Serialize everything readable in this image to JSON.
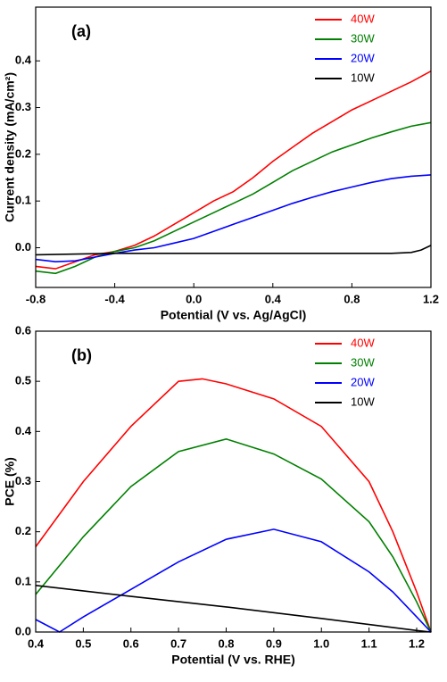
{
  "chart_data": [
    {
      "type": "line",
      "annotation": "(a)",
      "x_label": "Potential (V vs. Ag/AgCl)",
      "y_label": "Current density (mA/cm²)",
      "xlim": [
        -0.8,
        1.2
      ],
      "xticks": [
        -0.8,
        -0.4,
        {
          "value": 0,
          "label": "0.0"
        },
        0.4,
        0.8,
        1.2
      ],
      "ylim": [
        -0.085,
        0.515
      ],
      "yticks": [
        {
          "value": 0,
          "label": "0.0"
        },
        0.1,
        0.2,
        0.3,
        0.4
      ],
      "legend": "upper right",
      "series": [
        {
          "name": "40W",
          "color": "#ff0000",
          "x": [
            -0.8,
            -0.7,
            -0.6,
            -0.5,
            -0.4,
            -0.3,
            -0.2,
            -0.1,
            0,
            0.1,
            0.2,
            0.3,
            0.4,
            0.5,
            0.6,
            0.7,
            0.8,
            0.9,
            1.0,
            1.1,
            1.2
          ],
          "values": [
            -0.04,
            -0.045,
            -0.03,
            -0.015,
            -0.008,
            0.005,
            0.025,
            0.05,
            0.075,
            0.1,
            0.12,
            0.15,
            0.185,
            0.215,
            0.245,
            0.27,
            0.295,
            0.315,
            0.335,
            0.355,
            0.378
          ]
        },
        {
          "name": "30W",
          "color": "#008000",
          "x": [
            -0.8,
            -0.7,
            -0.6,
            -0.5,
            -0.4,
            -0.3,
            -0.2,
            -0.1,
            0,
            0.1,
            0.2,
            0.3,
            0.4,
            0.5,
            0.6,
            0.7,
            0.8,
            0.9,
            1.0,
            1.1,
            1.2
          ],
          "values": [
            -0.05,
            -0.055,
            -0.04,
            -0.02,
            -0.008,
            0,
            0.015,
            0.035,
            0.055,
            0.075,
            0.095,
            0.115,
            0.14,
            0.165,
            0.185,
            0.205,
            0.22,
            0.235,
            0.248,
            0.26,
            0.268
          ]
        },
        {
          "name": "20W",
          "color": "#0000ff",
          "x": [
            -0.8,
            -0.7,
            -0.6,
            -0.5,
            -0.4,
            -0.3,
            -0.2,
            -0.1,
            0,
            0.1,
            0.2,
            0.3,
            0.4,
            0.5,
            0.6,
            0.7,
            0.8,
            0.9,
            1.0,
            1.1,
            1.2
          ],
          "values": [
            -0.025,
            -0.03,
            -0.028,
            -0.02,
            -0.012,
            -0.005,
            0,
            0.01,
            0.02,
            0.035,
            0.05,
            0.065,
            0.08,
            0.095,
            0.108,
            0.12,
            0.13,
            0.14,
            0.148,
            0.153,
            0.156
          ]
        },
        {
          "name": "10W",
          "color": "#000000",
          "x": [
            -0.8,
            -0.4,
            0,
            0.4,
            0.8,
            1.0,
            1.1,
            1.15,
            1.2
          ],
          "values": [
            -0.015,
            -0.012,
            -0.012,
            -0.012,
            -0.012,
            -0.012,
            -0.01,
            -0.005,
            0.005
          ]
        }
      ]
    },
    {
      "type": "line",
      "annotation": "(b)",
      "x_label": "Potential (V vs. RHE)",
      "y_label": "PCE (%)",
      "xlim": [
        0.4,
        1.23
      ],
      "xticks": [
        0.4,
        0.5,
        0.6,
        0.7,
        0.8,
        0.9,
        {
          "value": 1,
          "label": "1.0"
        },
        1.1,
        1.2
      ],
      "ylim": [
        0,
        0.6
      ],
      "yticks": [
        {
          "value": 0,
          "label": "0.0"
        },
        0.1,
        0.2,
        0.3,
        0.4,
        0.5,
        0.6
      ],
      "legend": "upper right",
      "series": [
        {
          "name": "40W",
          "color": "#ff0000",
          "x": [
            0.4,
            0.5,
            0.6,
            0.7,
            0.75,
            0.8,
            0.9,
            1.0,
            1.1,
            1.15,
            1.2,
            1.23
          ],
          "values": [
            0.17,
            0.3,
            0.41,
            0.5,
            0.505,
            0.495,
            0.465,
            0.41,
            0.3,
            0.2,
            0.08,
            0
          ]
        },
        {
          "name": "30W",
          "color": "#008000",
          "x": [
            0.4,
            0.5,
            0.6,
            0.7,
            0.8,
            0.9,
            1.0,
            1.1,
            1.15,
            1.2,
            1.23
          ],
          "values": [
            0.075,
            0.19,
            0.29,
            0.36,
            0.385,
            0.355,
            0.305,
            0.22,
            0.15,
            0.06,
            0
          ]
        },
        {
          "name": "20W",
          "color": "#0000ff",
          "x": [
            0.4,
            0.45,
            0.5,
            0.6,
            0.7,
            0.8,
            0.9,
            1.0,
            1.1,
            1.15,
            1.2,
            1.23
          ],
          "values": [
            0.025,
            0,
            0.03,
            0.085,
            0.14,
            0.185,
            0.205,
            0.18,
            0.12,
            0.08,
            0.03,
            0
          ]
        },
        {
          "name": "10W",
          "color": "#000000",
          "x": [
            0.4,
            0.6,
            0.8,
            1.0,
            1.2,
            1.23
          ],
          "values": [
            0.093,
            0.071,
            0.05,
            0.027,
            0.003,
            0
          ]
        }
      ]
    }
  ]
}
